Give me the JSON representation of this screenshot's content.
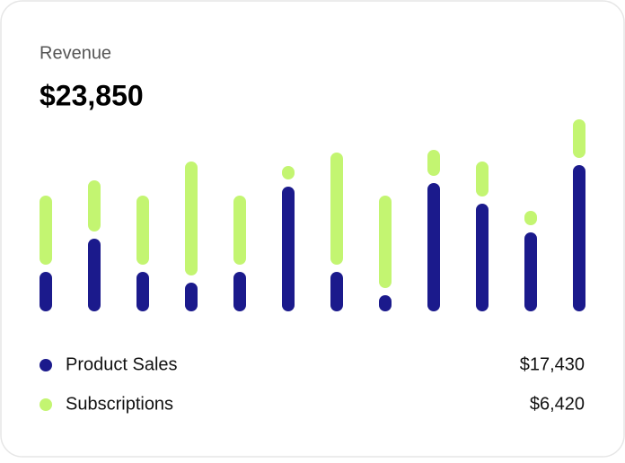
{
  "chart_data": {
    "type": "stacked-bar",
    "title": "Revenue",
    "total": "$23,850",
    "categories": [
      null,
      null,
      null,
      null,
      null,
      null,
      null,
      null,
      null,
      null,
      null,
      null
    ],
    "series": [
      {
        "name": "Product Sales",
        "color": "#1b1a8c",
        "total": "$17,430",
        "values": [
          44,
          81,
          44,
          32,
          44,
          139,
          44,
          18,
          143,
          120,
          88,
          163
        ]
      },
      {
        "name": "Subscriptions",
        "color": "#c3f571",
        "total": "$6,420",
        "values": [
          77,
          57,
          77,
          127,
          77,
          15,
          125,
          103,
          29,
          39,
          16,
          43
        ]
      }
    ]
  }
}
